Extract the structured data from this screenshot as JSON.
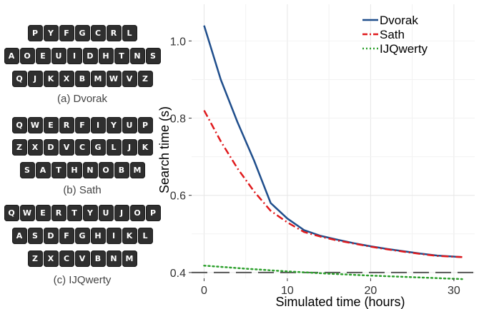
{
  "keyboards": [
    {
      "caption": "(a) Dvorak",
      "rows": [
        [
          "P",
          "Y",
          "F",
          "G",
          "C",
          "R",
          "L"
        ],
        [
          "A",
          "O",
          "E",
          "U",
          "I",
          "D",
          "H",
          "T",
          "N",
          "S"
        ],
        [
          "Q",
          "J",
          "K",
          "X",
          "B",
          "M",
          "W",
          "V",
          "Z"
        ]
      ]
    },
    {
      "caption": "(b) Sath",
      "rows": [
        [
          "Q",
          "W",
          "E",
          "R",
          "F",
          "I",
          "Y",
          "U",
          "P"
        ],
        [
          "Z",
          "X",
          "D",
          "V",
          "C",
          "G",
          "L",
          "J",
          "K"
        ],
        [
          "S",
          "A",
          "T",
          "H",
          "N",
          "O",
          "B",
          "M"
        ]
      ]
    },
    {
      "caption": "(c) IJQwerty",
      "rows": [
        [
          "Q",
          "W",
          "E",
          "R",
          "T",
          "Y",
          "U",
          "J",
          "O",
          "P"
        ],
        [
          "A",
          "S",
          "D",
          "F",
          "G",
          "H",
          "I",
          "K",
          "L"
        ],
        [
          "Z",
          "X",
          "C",
          "V",
          "B",
          "N",
          "M"
        ]
      ]
    }
  ],
  "chart_data": {
    "type": "line",
    "title": "",
    "xlabel": "Simulated time (hours)",
    "ylabel": "Search time (s)",
    "xlim": [
      -1.5,
      32.5
    ],
    "ylim": [
      0.385,
      1.095
    ],
    "xticks": [
      0,
      10,
      20,
      30
    ],
    "yticks": [
      0.4,
      0.6,
      0.8,
      1.0
    ],
    "ytick_labels": [
      "0.4",
      "0.6",
      "0.8",
      "1.0"
    ],
    "grid": true,
    "legend_position": "top-right",
    "reference_line": {
      "y": 0.4,
      "style": "dashed",
      "color": "#555555"
    },
    "series": [
      {
        "name": "Dvorak",
        "color": "#1f4e8c",
        "style": "solid",
        "x": [
          0,
          2,
          4,
          6,
          8,
          10,
          12,
          14,
          16,
          18,
          20,
          22,
          24,
          26,
          28,
          31
        ],
        "y": [
          1.04,
          0.9,
          0.79,
          0.69,
          0.58,
          0.54,
          0.51,
          0.495,
          0.485,
          0.476,
          0.468,
          0.461,
          0.455,
          0.449,
          0.444,
          0.44
        ]
      },
      {
        "name": "Sath",
        "color": "#e0191c",
        "style": "dashdot",
        "x": [
          0,
          2,
          4,
          6,
          8,
          10,
          12,
          14,
          16,
          18,
          20,
          22,
          24,
          26,
          28,
          31
        ],
        "y": [
          0.82,
          0.74,
          0.67,
          0.61,
          0.56,
          0.53,
          0.505,
          0.493,
          0.483,
          0.475,
          0.467,
          0.46,
          0.454,
          0.448,
          0.443,
          0.44
        ]
      },
      {
        "name": "IJQwerty",
        "color": "#2ca02c",
        "style": "dotted",
        "x": [
          0,
          5,
          10,
          15,
          20,
          25,
          31
        ],
        "y": [
          0.418,
          0.41,
          0.403,
          0.397,
          0.392,
          0.388,
          0.383
        ]
      }
    ]
  }
}
